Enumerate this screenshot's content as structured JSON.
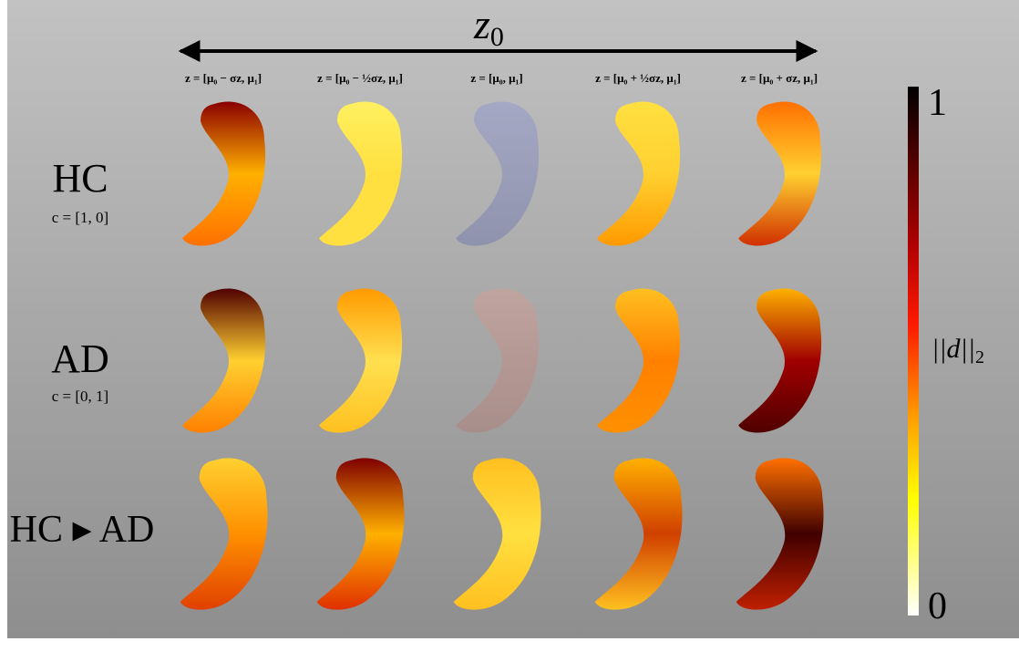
{
  "header": {
    "axis_label": "z",
    "axis_subscript": "0"
  },
  "columns": [
    "z = [μ₀ − σz, μ₁]",
    "z = [μ₀ − ½σz, μ₁]",
    "z = [μ₀, μ₁]",
    "z = [μ₀ + ½σz, μ₁]",
    "z = [μ₀ + σz, μ₁]"
  ],
  "rows": [
    {
      "label": "HC",
      "condition": "c = [1, 0]"
    },
    {
      "label": "AD",
      "condition": "c = [0, 1]"
    },
    {
      "label": "HC ▸ AD"
    }
  ],
  "colorbar": {
    "max": "1",
    "min": "0",
    "label": "||d||",
    "label_subscript": "2"
  }
}
